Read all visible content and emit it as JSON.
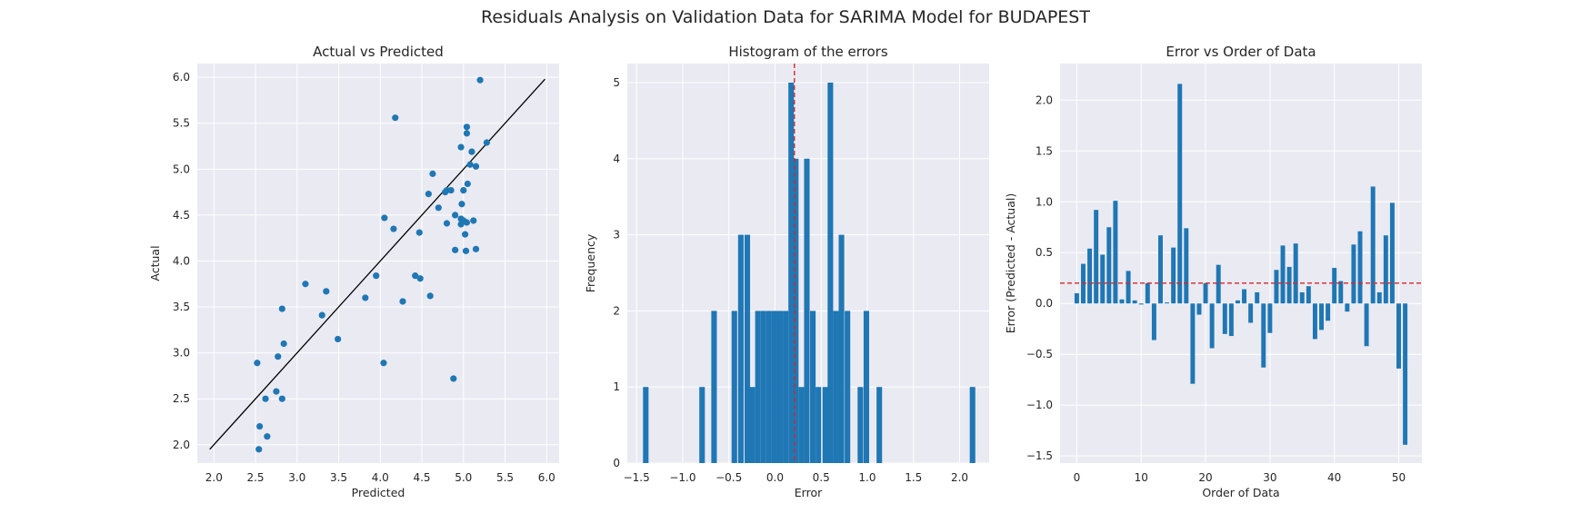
{
  "figure": {
    "title": "Residuals Analysis on Validation Data for SARIMA Model for BUDAPEST"
  },
  "colors": {
    "plot_bg": "#eaeaf2",
    "grid": "#ffffff",
    "bar": "#1f77b4",
    "point": "#1f77b4",
    "ref_line": "#000000",
    "dashed": "#d62728"
  },
  "chart_data": [
    {
      "type": "scatter",
      "title": "Actual vs Predicted",
      "xlabel": "Predicted",
      "ylabel": "Actual",
      "xlim": [
        1.8,
        6.15
      ],
      "ylim": [
        1.8,
        6.15
      ],
      "xticks": [
        "2.0",
        "2.5",
        "3.0",
        "3.5",
        "4.0",
        "4.5",
        "5.0",
        "5.5",
        "6.0"
      ],
      "yticks": [
        "2.0",
        "2.5",
        "3.0",
        "3.5",
        "4.0",
        "4.5",
        "5.0",
        "5.5",
        "6.0"
      ],
      "grid": true,
      "reference_line": {
        "from": [
          1.95,
          1.95
        ],
        "to": [
          5.98,
          5.98
        ]
      },
      "points": [
        [
          5.2,
          5.97
        ],
        [
          4.18,
          5.56
        ],
        [
          5.04,
          5.46
        ],
        [
          5.04,
          5.39
        ],
        [
          5.28,
          5.29
        ],
        [
          4.97,
          5.24
        ],
        [
          5.1,
          5.19
        ],
        [
          5.15,
          5.03
        ],
        [
          5.08,
          5.05
        ],
        [
          4.63,
          4.95
        ],
        [
          5.05,
          4.84
        ],
        [
          4.8,
          4.77
        ],
        [
          4.85,
          4.77
        ],
        [
          5.0,
          4.77
        ],
        [
          4.78,
          4.75
        ],
        [
          4.58,
          4.73
        ],
        [
          4.7,
          4.58
        ],
        [
          4.98,
          4.62
        ],
        [
          4.9,
          4.5
        ],
        [
          4.97,
          4.46
        ],
        [
          5.0,
          4.44
        ],
        [
          5.04,
          4.42
        ],
        [
          4.05,
          4.47
        ],
        [
          5.12,
          4.44
        ],
        [
          4.8,
          4.41
        ],
        [
          4.97,
          4.4
        ],
        [
          4.16,
          4.35
        ],
        [
          4.47,
          4.31
        ],
        [
          5.02,
          4.29
        ],
        [
          5.15,
          4.13
        ],
        [
          4.9,
          4.12
        ],
        [
          5.03,
          4.11
        ],
        [
          3.95,
          3.84
        ],
        [
          4.42,
          3.84
        ],
        [
          4.48,
          3.81
        ],
        [
          3.1,
          3.75
        ],
        [
          3.35,
          3.67
        ],
        [
          3.82,
          3.6
        ],
        [
          4.6,
          3.62
        ],
        [
          4.27,
          3.56
        ],
        [
          2.82,
          3.48
        ],
        [
          3.3,
          3.41
        ],
        [
          3.49,
          3.15
        ],
        [
          2.84,
          3.1
        ],
        [
          2.77,
          2.96
        ],
        [
          2.52,
          2.89
        ],
        [
          4.04,
          2.89
        ],
        [
          4.88,
          2.72
        ],
        [
          2.75,
          2.58
        ],
        [
          2.62,
          2.5
        ],
        [
          2.82,
          2.5
        ],
        [
          2.55,
          2.2
        ],
        [
          2.64,
          2.09
        ],
        [
          2.54,
          1.95
        ]
      ]
    },
    {
      "type": "bar",
      "title": "Histogram of the errors",
      "xlabel": "Error",
      "ylabel": "Frequency",
      "xlim": [
        -1.6,
        2.32
      ],
      "ylim": [
        0,
        5.25
      ],
      "xticks": [
        "−1.5",
        "−1.0",
        "−0.5",
        "0.0",
        "0.5",
        "1.0",
        "1.5",
        "2.0"
      ],
      "yticks": [
        "0",
        "1",
        "2",
        "3",
        "4",
        "5"
      ],
      "grid": true,
      "bar_width": 0.06,
      "vline_x": 0.21,
      "bars": [
        [
          -1.4,
          1
        ],
        [
          -0.79,
          1
        ],
        [
          -0.66,
          2
        ],
        [
          -0.44,
          2
        ],
        [
          -0.37,
          3
        ],
        [
          -0.3,
          3
        ],
        [
          -0.245,
          1
        ],
        [
          -0.185,
          2
        ],
        [
          -0.125,
          2
        ],
        [
          -0.065,
          2
        ],
        [
          -0.005,
          2
        ],
        [
          0.055,
          2
        ],
        [
          0.115,
          2
        ],
        [
          0.175,
          5
        ],
        [
          0.225,
          4
        ],
        [
          0.285,
          1
        ],
        [
          0.345,
          4
        ],
        [
          0.41,
          2
        ],
        [
          0.47,
          1
        ],
        [
          0.545,
          1
        ],
        [
          0.6,
          5
        ],
        [
          0.66,
          2
        ],
        [
          0.72,
          3
        ],
        [
          0.785,
          2
        ],
        [
          0.925,
          1
        ],
        [
          0.99,
          2
        ],
        [
          1.13,
          1
        ],
        [
          2.14,
          1
        ]
      ]
    },
    {
      "type": "bar",
      "title": "Error vs Order of Data",
      "xlabel": "Order of Data",
      "ylabel": "Error (Predicted - Actual)",
      "xlim": [
        -2.6,
        53.6
      ],
      "ylim": [
        -1.57,
        2.36
      ],
      "xticks": [
        "0",
        "10",
        "20",
        "30",
        "40",
        "50"
      ],
      "yticks": [
        "−1.5",
        "−1.0",
        "−0.5",
        "0.0",
        "0.5",
        "1.0",
        "1.5",
        "2.0"
      ],
      "grid": true,
      "bar_width": 0.7,
      "hline_y": 0.2,
      "categories": [
        0,
        1,
        2,
        3,
        4,
        5,
        6,
        7,
        8,
        9,
        10,
        11,
        12,
        13,
        14,
        15,
        16,
        17,
        18,
        19,
        20,
        21,
        22,
        23,
        24,
        25,
        26,
        27,
        28,
        29,
        30,
        31,
        32,
        33,
        34,
        35,
        36,
        37,
        38,
        39,
        40,
        41,
        42,
        43,
        44,
        45,
        46,
        47,
        48,
        49,
        50,
        51
      ],
      "values": [
        0.1,
        0.39,
        0.54,
        0.92,
        0.48,
        0.75,
        1.01,
        0.04,
        0.32,
        0.03,
        -0.01,
        0.2,
        -0.36,
        0.67,
        0.01,
        0.55,
        2.16,
        0.74,
        -0.79,
        -0.11,
        0.2,
        -0.44,
        0.38,
        -0.3,
        -0.32,
        0.03,
        0.14,
        -0.19,
        0.11,
        -0.63,
        -0.29,
        0.33,
        0.57,
        0.36,
        0.59,
        0.11,
        0.17,
        -0.35,
        -0.26,
        -0.17,
        0.35,
        0.22,
        -0.08,
        0.58,
        0.71,
        -0.42,
        1.15,
        0.11,
        0.67,
        0.99,
        -0.64,
        -1.39
      ]
    }
  ]
}
